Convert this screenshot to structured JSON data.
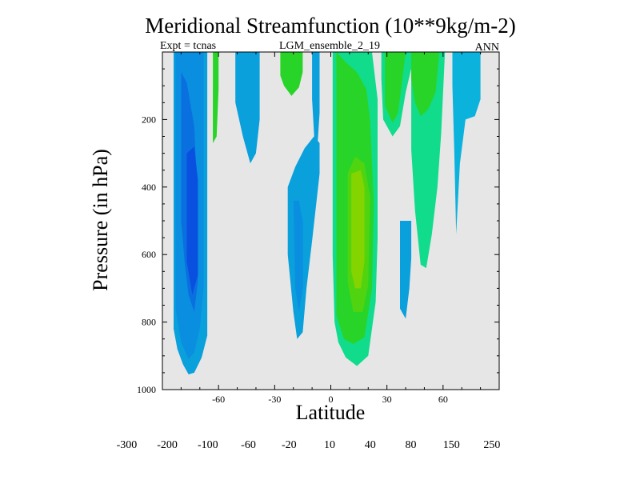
{
  "chart_data": {
    "type": "heatmap",
    "title": "Meridional Streamfunction (10**9kg/m-2)",
    "subtitle_left": "Expt = tcnas",
    "subtitle_center": "LGM_ensemble_2_19",
    "subtitle_right": "ANN",
    "xlabel": "Latitude",
    "ylabel": "Pressure (in hPa)",
    "xlim": [
      -90,
      90
    ],
    "ylim": [
      1000,
      0
    ],
    "x_ticks": [
      -60,
      -30,
      0,
      30,
      60
    ],
    "y_ticks": [
      200,
      400,
      600,
      800,
      1000
    ],
    "background_color": "#e6e6e6",
    "colorbar": {
      "colors": [
        "#7510d4",
        "#5414d8",
        "#3018dc",
        "#1830dc",
        "#0a50e0",
        "#0a70e0",
        "#0a8ee0",
        "#0aa0dc",
        "#0ab2dc",
        "#0ac4dc",
        "#e6e6e6",
        "#10dc8c",
        "#28d428",
        "#50d410",
        "#84d400",
        "#b4d400",
        "#d8c800",
        "#e0a400",
        "#e48000",
        "#e85400",
        "#e82800",
        "#e80000"
      ],
      "tick_labels": [
        "-300",
        "-200",
        "-100",
        "-60",
        "-20",
        "10",
        "40",
        "80",
        "150",
        "250"
      ]
    },
    "contours": [
      {
        "name": "contour-sh-cell-outer",
        "color": "#0aa0dc",
        "points": [
          [
            -84,
            0
          ],
          [
            -84,
            820
          ],
          [
            -82,
            880
          ],
          [
            -79,
            925
          ],
          [
            -76,
            955
          ],
          [
            -73,
            950
          ],
          [
            -69,
            905
          ],
          [
            -66,
            840
          ],
          [
            -66,
            0
          ]
        ]
      },
      {
        "name": "contour-sh-cell-mid",
        "color": "#0a8ee0",
        "points": [
          [
            -83,
            0
          ],
          [
            -83,
            760
          ],
          [
            -80,
            860
          ],
          [
            -76,
            910
          ],
          [
            -73,
            890
          ],
          [
            -70,
            820
          ],
          [
            -68,
            700
          ],
          [
            -68,
            0
          ]
        ]
      },
      {
        "name": "contour-sh-cell-inner",
        "color": "#0a70e0",
        "points": [
          [
            -80,
            60
          ],
          [
            -80,
            500
          ],
          [
            -78,
            630
          ],
          [
            -76,
            720
          ],
          [
            -73,
            770
          ],
          [
            -71,
            680
          ],
          [
            -71,
            460
          ],
          [
            -73,
            220
          ],
          [
            -77,
            90
          ]
        ]
      },
      {
        "name": "contour-sh-cell-core",
        "color": "#0a50e0",
        "points": [
          [
            -77,
            300
          ],
          [
            -77,
            620
          ],
          [
            -74,
            720
          ],
          [
            -71,
            660
          ],
          [
            -71,
            380
          ],
          [
            -73,
            280
          ]
        ]
      },
      {
        "name": "contour-green-strip-60s",
        "color": "#28d428",
        "points": [
          [
            -63,
            0
          ],
          [
            -63,
            270
          ],
          [
            -61,
            250
          ],
          [
            -60,
            110
          ],
          [
            -60,
            0
          ]
        ]
      },
      {
        "name": "contour-sh-mid-blue",
        "color": "#0aa0dc",
        "points": [
          [
            -51,
            0
          ],
          [
            -51,
            150
          ],
          [
            -47,
            250
          ],
          [
            -43,
            330
          ],
          [
            -40,
            300
          ],
          [
            -38,
            200
          ],
          [
            -38,
            0
          ]
        ]
      },
      {
        "name": "contour-green-strip-25s",
        "color": "#28d428",
        "points": [
          [
            -27,
            0
          ],
          [
            -27,
            70
          ],
          [
            -25,
            100
          ],
          [
            -21,
            130
          ],
          [
            -17,
            105
          ],
          [
            -15,
            60
          ],
          [
            -15,
            0
          ]
        ]
      },
      {
        "name": "contour-blue-strip-10s",
        "color": "#0aa0dc",
        "points": [
          [
            -10,
            0
          ],
          [
            -10,
            140
          ],
          [
            -9,
            240
          ],
          [
            -8,
            350
          ],
          [
            -6,
            180
          ],
          [
            -6,
            0
          ]
        ]
      },
      {
        "name": "contour-hadley-south-outer",
        "color": "#0aa0dc",
        "points": [
          [
            -23,
            400
          ],
          [
            -23,
            600
          ],
          [
            -20,
            770
          ],
          [
            -18,
            850
          ],
          [
            -15,
            830
          ],
          [
            -13,
            700
          ],
          [
            -10,
            560
          ],
          [
            -6,
            360
          ],
          [
            -6,
            270
          ],
          [
            -9,
            250
          ],
          [
            -14,
            285
          ],
          [
            -19,
            340
          ]
        ]
      },
      {
        "name": "contour-hadley-south-inner",
        "color": "#0a8ee0",
        "points": [
          [
            -20,
            440
          ],
          [
            -19,
            700
          ],
          [
            -17,
            770
          ],
          [
            -15,
            700
          ],
          [
            -15,
            500
          ],
          [
            -17,
            440
          ]
        ]
      },
      {
        "name": "contour-hadley-north-outer",
        "color": "#10dc8c",
        "points": [
          [
            1,
            0
          ],
          [
            1,
            600
          ],
          [
            2,
            800
          ],
          [
            4,
            860
          ],
          [
            8,
            905
          ],
          [
            14,
            930
          ],
          [
            20,
            900
          ],
          [
            24,
            740
          ],
          [
            25,
            550
          ],
          [
            25,
            140
          ],
          [
            22,
            0
          ]
        ]
      },
      {
        "name": "contour-hadley-north-green",
        "color": "#28d428",
        "points": [
          [
            3,
            0
          ],
          [
            3,
            780
          ],
          [
            7,
            850
          ],
          [
            12,
            865
          ],
          [
            18,
            845
          ],
          [
            22,
            700
          ],
          [
            23,
            450
          ],
          [
            21,
            200
          ],
          [
            19,
            110
          ],
          [
            14,
            60
          ],
          [
            8,
            30
          ]
        ]
      },
      {
        "name": "contour-hadley-north-yellowgreen",
        "color": "#50d410",
        "points": [
          [
            9,
            360
          ],
          [
            9,
            680
          ],
          [
            12,
            770
          ],
          [
            17,
            770
          ],
          [
            20,
            690
          ],
          [
            21,
            430
          ],
          [
            18,
            330
          ],
          [
            13,
            310
          ]
        ]
      },
      {
        "name": "contour-hadley-north-core",
        "color": "#84d400",
        "points": [
          [
            11,
            360
          ],
          [
            11,
            650
          ],
          [
            13,
            700
          ],
          [
            16,
            700
          ],
          [
            18,
            620
          ],
          [
            18,
            400
          ],
          [
            16,
            350
          ]
        ]
      },
      {
        "name": "contour-nh-green-band",
        "color": "#10dc8c",
        "points": [
          [
            27,
            0
          ],
          [
            27,
            80
          ],
          [
            28,
            200
          ],
          [
            33,
            250
          ],
          [
            37,
            220
          ],
          [
            40,
            120
          ],
          [
            45,
            0
          ]
        ]
      },
      {
        "name": "contour-nh-green-band-inner",
        "color": "#28d428",
        "points": [
          [
            29,
            0
          ],
          [
            29,
            160
          ],
          [
            33,
            210
          ],
          [
            36,
            180
          ],
          [
            38,
            90
          ],
          [
            40,
            0
          ]
        ]
      },
      {
        "name": "contour-nh-blue-small",
        "color": "#0aa0dc",
        "points": [
          [
            37,
            500
          ],
          [
            37,
            760
          ],
          [
            40,
            790
          ],
          [
            42,
            700
          ],
          [
            43,
            610
          ],
          [
            43,
            500
          ]
        ]
      },
      {
        "name": "contour-ferrel-north-outer",
        "color": "#10dc8c",
        "points": [
          [
            43,
            0
          ],
          [
            43,
            290
          ],
          [
            45,
            470
          ],
          [
            48,
            630
          ],
          [
            51,
            640
          ],
          [
            54,
            540
          ],
          [
            57,
            400
          ],
          [
            59,
            240
          ],
          [
            61,
            0
          ]
        ]
      },
      {
        "name": "contour-ferrel-north-inner",
        "color": "#28d428",
        "points": [
          [
            43,
            0
          ],
          [
            43,
            80
          ],
          [
            45,
            150
          ],
          [
            48,
            190
          ],
          [
            52,
            170
          ],
          [
            56,
            120
          ],
          [
            58,
            0
          ]
        ]
      },
      {
        "name": "contour-polar-north",
        "color": "#0ab2dc",
        "points": [
          [
            65,
            0
          ],
          [
            65,
            100
          ],
          [
            66,
            300
          ],
          [
            67,
            540
          ],
          [
            69,
            330
          ],
          [
            72,
            200
          ],
          [
            77,
            190
          ],
          [
            80,
            140
          ],
          [
            80,
            0
          ]
        ]
      }
    ]
  }
}
